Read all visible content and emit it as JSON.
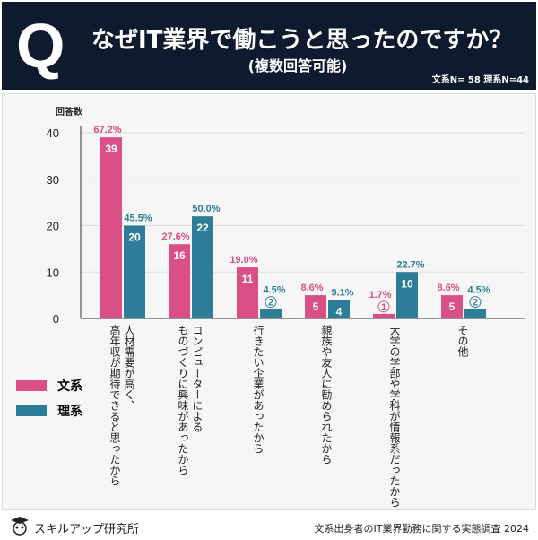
{
  "header": {
    "q": "Q",
    "title": "なぜIT業界で働こうと思ったのですか？",
    "subtitle": "(複数回答可能)",
    "sample": "文系N= 58 理系N=44"
  },
  "footer": {
    "brand": "スキルアップ研究所",
    "source": "文系出身者のIT業界勤務に関する実態調査 2024"
  },
  "colors": {
    "bunkei": "#d94f86",
    "rikei": "#2e7d98",
    "header_bg": "#0e1a2e"
  },
  "chart_data": {
    "type": "bar",
    "ylabel": "回答数",
    "ylim": [
      0,
      40
    ],
    "yticks": [
      "0",
      "10",
      "20",
      "30",
      "40"
    ],
    "categories": [
      "人材需要が高く、\n高年収が期待できると思ったから",
      "コンピューターによる\nものづくりに興味があったから",
      "行きたい企業があったから",
      "親族や友人に勧められたから",
      "大学の学部や学科が情報系だったから",
      "その他"
    ],
    "series": [
      {
        "name": "文系",
        "values": [
          39,
          16,
          11,
          5,
          1,
          5
        ],
        "percent": [
          "67.2%",
          "27.6%",
          "19.0%",
          "8.6%",
          "1.7%",
          "8.6%"
        ]
      },
      {
        "name": "理系",
        "values": [
          20,
          22,
          2,
          4,
          10,
          2
        ],
        "percent": [
          "45.5%",
          "50.0%",
          "4.5%",
          "9.1%",
          "22.7%",
          "4.5%"
        ]
      }
    ],
    "legend": "left"
  }
}
